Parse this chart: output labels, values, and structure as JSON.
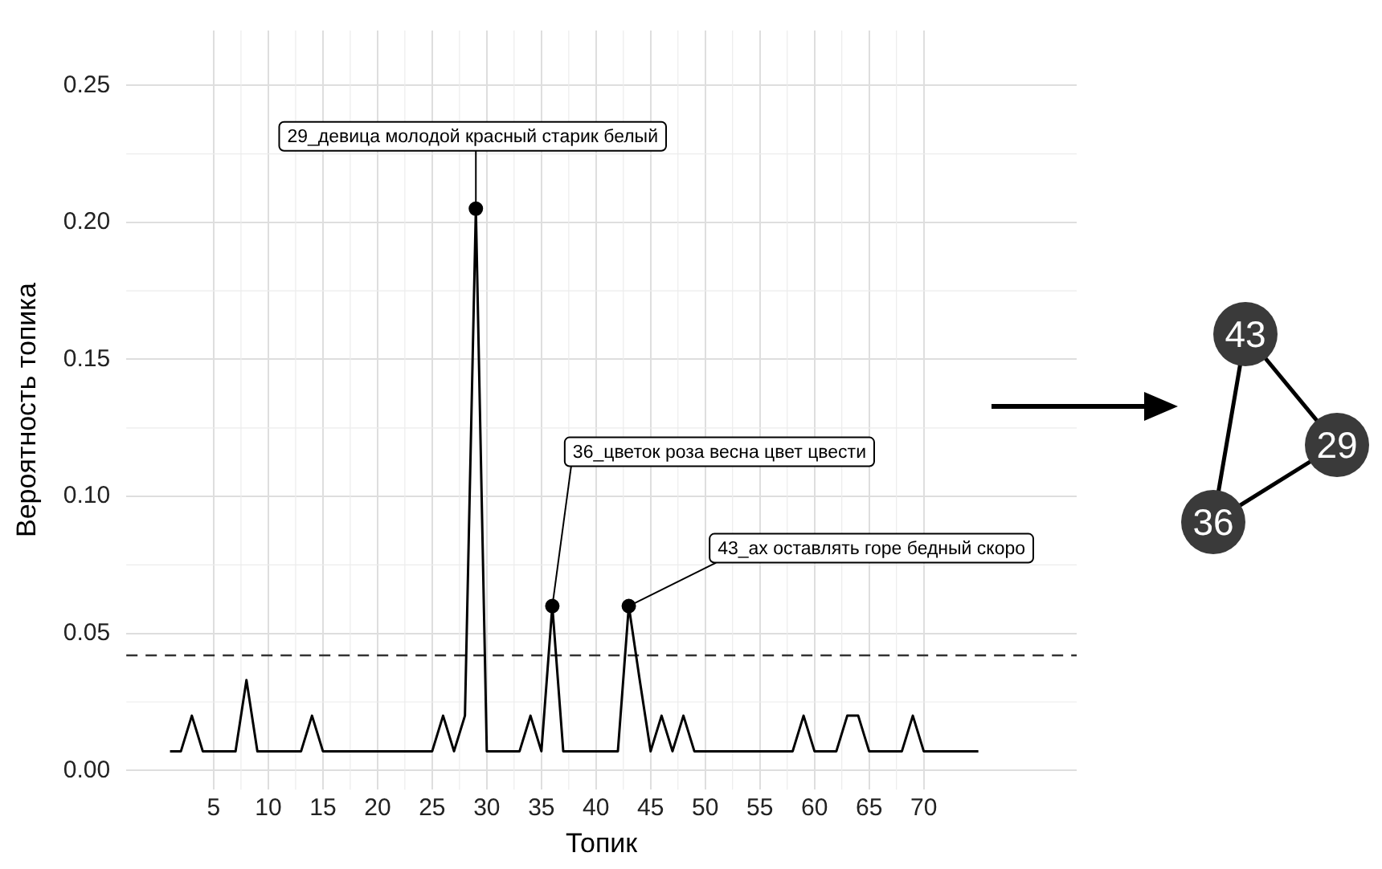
{
  "chart_data": {
    "type": "line",
    "xlabel": "Топик",
    "ylabel": "Вероятность топика",
    "xlim": [
      -3,
      84
    ],
    "xticks": [
      5,
      10,
      15,
      20,
      25,
      30,
      35,
      40,
      45,
      50,
      55,
      60,
      65,
      70
    ],
    "ylim": [
      -0.007,
      0.27
    ],
    "yticks": [
      {
        "value": 0,
        "label": "0.00"
      },
      0.05,
      {
        "value": 0.1,
        "label": "0.10"
      },
      0.15,
      {
        "value": 0.2,
        "label": "0.20"
      },
      0.25
    ],
    "grid": true,
    "legend": false,
    "series": [
      {
        "type": "line",
        "color": "#000000",
        "marker": "none",
        "x": [
          1,
          2,
          3,
          4,
          5,
          6,
          7,
          8,
          9,
          10,
          11,
          12,
          13,
          14,
          15,
          16,
          17,
          18,
          19,
          20,
          21,
          22,
          23,
          24,
          25,
          26,
          27,
          28,
          29,
          30,
          31,
          32,
          33,
          34,
          35,
          36,
          37,
          38,
          39,
          40,
          41,
          42,
          43,
          44,
          45,
          46,
          47,
          48,
          49,
          50,
          51,
          52,
          53,
          54,
          55,
          56,
          57,
          58,
          59,
          60,
          61,
          62,
          63,
          64,
          65,
          66,
          67,
          68,
          69,
          70,
          71,
          72,
          73,
          74,
          75
        ],
        "values": [
          0.007,
          0.007,
          0.02,
          0.007,
          0.007,
          0.007,
          0.007,
          0.033,
          0.007,
          0.007,
          0.007,
          0.007,
          0.007,
          0.02,
          0.007,
          0.007,
          0.007,
          0.007,
          0.007,
          0.007,
          0.007,
          0.007,
          0.007,
          0.007,
          0.007,
          0.02,
          0.007,
          0.02,
          0.205,
          0.007,
          0.007,
          0.007,
          0.007,
          0.02,
          0.007,
          0.06,
          0.007,
          0.007,
          0.007,
          0.007,
          0.007,
          0.007,
          0.06,
          0.033,
          0.007,
          0.02,
          0.007,
          0.02,
          0.007,
          0.007,
          0.007,
          0.007,
          0.007,
          0.007,
          0.007,
          0.007,
          0.007,
          0.007,
          0.02,
          0.007,
          0.007,
          0.007,
          0.02,
          0.02,
          0.007,
          0.007,
          0.007,
          0.007,
          0.02,
          0.007,
          0.007,
          0.007,
          0.007,
          0.007,
          0.007
        ]
      },
      {
        "type": "scatter",
        "color": "#000000",
        "marker": "circle",
        "x": [
          29,
          36,
          43
        ],
        "values": [
          0.205,
          0.06,
          0.06
        ]
      }
    ],
    "ref_lines": [
      {
        "axis": "y",
        "value": 0.042,
        "color": "#333333",
        "line_style": "dashed"
      }
    ],
    "annotations": [
      {
        "text": "29_девица молодой красный старик белый",
        "x": 29,
        "y": 0.205
      },
      {
        "text": "36_цветок роза весна цвет цвести",
        "x": 36,
        "y": 0.06
      },
      {
        "text": "43_ах оставлять горе бедный скоро",
        "x": 43,
        "y": 0.06
      },
      "43",
      "36",
      "29"
    ]
  }
}
